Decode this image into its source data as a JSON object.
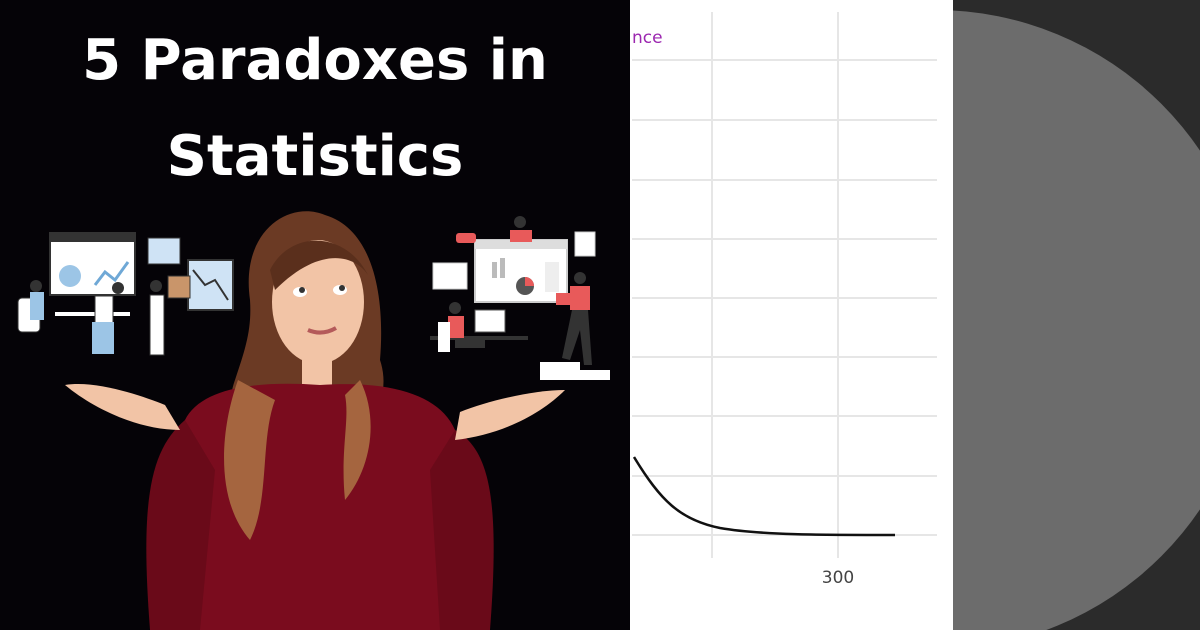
{
  "header": {
    "title_lines": [
      "5 Paradoxes in",
      "Statistics"
    ]
  },
  "chart_fragment": {
    "legend_text": "nce",
    "x_tick": "300"
  }
}
